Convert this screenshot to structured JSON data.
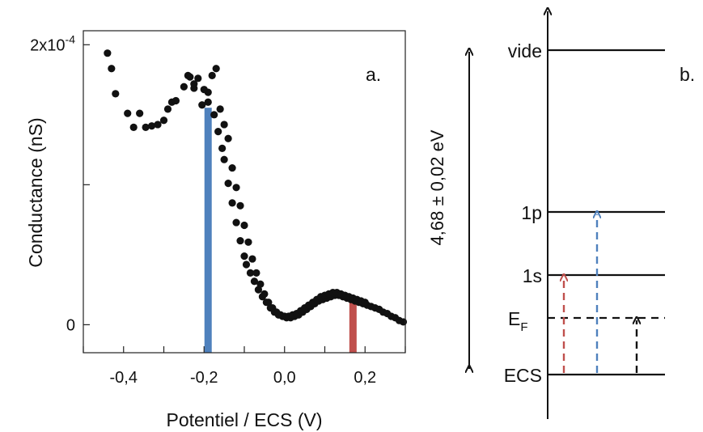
{
  "chart_data": [
    {
      "panel_label": "a.",
      "type": "scatter",
      "xlabel": "Potentiel / ECS (V)",
      "ylabel": "Conductance (nS)",
      "xlim": [
        -0.5,
        0.3
      ],
      "ylim": [
        -2e-05,
        0.00021
      ],
      "x_ticks": [
        -0.4,
        -0.2,
        0.0,
        0.2
      ],
      "x_tick_labels": [
        "-0,4",
        "-0,2",
        "0,0",
        "0,2"
      ],
      "y_tick_labels": [
        {
          "value": 0,
          "base": "0",
          "exp": ""
        },
        {
          "value": 0.0002,
          "base": "2x10",
          "exp": "-4"
        }
      ],
      "y_minor_ticks": [
        0.0001
      ],
      "marker_color": "#111111",
      "series": [
        {
          "x": [
            -0.44,
            -0.43,
            -0.42,
            -0.39,
            -0.375,
            -0.36,
            -0.345,
            -0.33,
            -0.315,
            -0.3,
            -0.29,
            -0.28,
            -0.27,
            -0.25,
            -0.24,
            -0.235,
            -0.225,
            -0.215,
            -0.205,
            -0.19,
            -0.175,
            -0.165,
            -0.155,
            -0.15,
            -0.14,
            -0.13,
            -0.12,
            -0.11,
            -0.1,
            -0.095,
            -0.085,
            -0.075,
            -0.065,
            -0.055,
            -0.045,
            -0.035,
            -0.025,
            -0.015,
            -0.005,
            0.005,
            0.015,
            0.025,
            0.035,
            0.045,
            0.055,
            0.065,
            0.075,
            0.085,
            0.095,
            0.105,
            0.115,
            0.125,
            0.135,
            0.145,
            0.155,
            0.165,
            0.175,
            0.185,
            0.195,
            0.205,
            0.215,
            0.225,
            0.235,
            0.245,
            0.255,
            0.265,
            0.275,
            0.285,
            0.295,
            -0.13,
            -0.12,
            -0.11,
            -0.1,
            -0.09,
            -0.08,
            -0.07,
            -0.06,
            -0.05,
            -0.04,
            -0.03,
            -0.02,
            -0.01,
            0.0,
            0.01,
            0.02,
            0.03,
            0.04,
            0.05,
            0.06,
            0.07,
            0.08,
            0.09,
            0.1,
            0.11,
            0.12,
            0.13,
            0.14,
            0.15,
            0.16,
            0.17,
            0.18,
            0.19,
            0.2,
            -0.19,
            -0.18,
            -0.17,
            -0.16,
            -0.15,
            -0.14,
            -0.225,
            -0.2
          ],
          "y": [
            0.000194,
            0.000183,
            0.000165,
            0.000151,
            0.000141,
            0.000151,
            0.000141,
            0.000142,
            0.000143,
            0.000146,
            0.000154,
            0.000159,
            0.00016,
            0.00017,
            0.000178,
            0.000177,
            0.000169,
            0.000176,
            0.000157,
            0.000166,
            0.00015,
            0.000138,
            0.000126,
            0.000118,
            0.000101,
            8.7e-05,
            7.3e-05,
            6e-05,
            4.9e-05,
            4.3e-05,
            3.7e-05,
            3.1e-05,
            2.5e-05,
            2e-05,
            1.6e-05,
            1.2e-05,
            9e-06,
            7e-06,
            6e-06,
            5e-06,
            5e-06,
            6e-06,
            7e-06,
            9e-06,
            1.1e-05,
            1.3e-05,
            1.5e-05,
            1.7e-05,
            1.8e-05,
            1.9e-05,
            2e-05,
            2.1e-05,
            2.1e-05,
            2e-05,
            1.9e-05,
            1.8e-05,
            1.7e-05,
            1.6e-05,
            1.5e-05,
            1.4e-05,
            1.3e-05,
            1.2e-05,
            1.1e-05,
            9e-06,
            8e-06,
            6e-06,
            5e-06,
            3e-06,
            2e-06,
            0.000112,
            9.8e-05,
            8.5e-05,
            7.1e-05,
            5.9e-05,
            4.7e-05,
            3.7e-05,
            2.9e-05,
            2.2e-05,
            1.6e-05,
            1.2e-05,
            9e-06,
            7e-06,
            6e-06,
            6e-06,
            7e-06,
            8e-06,
            1e-05,
            1.2e-05,
            1.4e-05,
            1.6e-05,
            1.8e-05,
            2e-05,
            2.1e-05,
            2.2e-05,
            2.3e-05,
            2.3e-05,
            2.2e-05,
            2.1e-05,
            2e-05,
            1.9e-05,
            1.8e-05,
            1.7e-05,
            1.6e-05,
            0.000159,
            0.000178,
            0.000183,
            0.000154,
            0.000143,
            0.000133,
            0.000172,
            0.000168
          ]
        }
      ],
      "vertical_bars": [
        {
          "x": -0.19,
          "y_top": 0.000155,
          "color": "#4f81bd"
        },
        {
          "x": 0.17,
          "y_top": 2e-05,
          "color": "#c0504d"
        }
      ]
    },
    {
      "panel_label": "b.",
      "type": "energy-level-diagram",
      "energy_range_label": "4,68 ± 0,02 eV",
      "levels": [
        {
          "label": "vide",
          "sub": "",
          "style": "solid",
          "rank": 4
        },
        {
          "label": "1p",
          "sub": "",
          "style": "solid",
          "rank": 3
        },
        {
          "label": "1s",
          "sub": "",
          "style": "solid",
          "rank": 2
        },
        {
          "label": "E",
          "sub": "F",
          "style": "dashed",
          "rank": 1
        },
        {
          "label": "ECS",
          "sub": "",
          "style": "solid",
          "rank": 0
        }
      ],
      "transitions": [
        {
          "from": "ECS",
          "to": "1s",
          "color": "#c0504d"
        },
        {
          "from": "ECS",
          "to": "1p",
          "color": "#4f81bd"
        },
        {
          "from": "ECS",
          "to": "EF",
          "color": "#111111"
        }
      ]
    }
  ]
}
